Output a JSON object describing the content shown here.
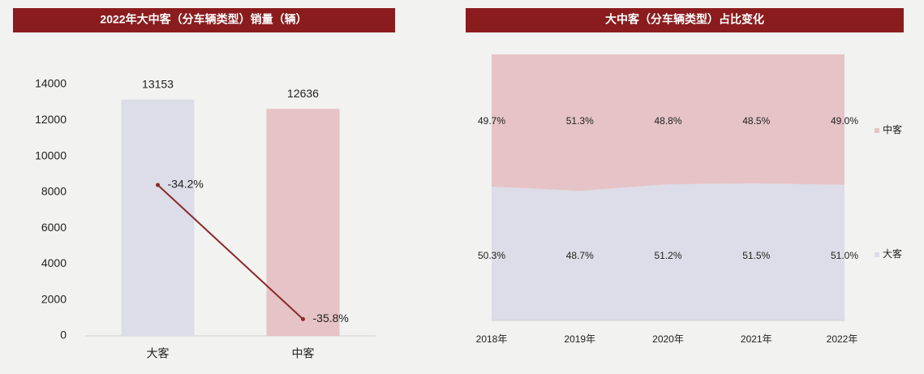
{
  "chart_data": [
    {
      "type": "bar",
      "title": "2022年大中客（分车辆类型）销量（辆）",
      "categories": [
        "大客",
        "中客"
      ],
      "values": [
        13153,
        12636
      ],
      "colors": [
        "#dcdde8",
        "#e6c3c6"
      ],
      "ylim": [
        0,
        14000
      ],
      "yticks": [
        0,
        2000,
        4000,
        6000,
        8000,
        10000,
        12000,
        14000
      ],
      "line": {
        "values": [
          -34.2,
          -35.8
        ],
        "value_labels": [
          "-34.2%",
          "-35.8%"
        ],
        "color": "#8b2a2a",
        "axis": "y2"
      },
      "y2lim": [
        -36,
        -33
      ]
    },
    {
      "type": "area",
      "title": "大中客（分车辆类型）占比变化",
      "stacked": true,
      "categories": [
        "2018年",
        "2019年",
        "2020年",
        "2021年",
        "2022年"
      ],
      "series": [
        {
          "name": "大客",
          "color": "#dcdde8",
          "values": [
            50.3,
            48.7,
            51.2,
            51.5,
            51.0
          ],
          "value_labels": [
            "50.3%",
            "48.7%",
            "51.2%",
            "51.5%",
            "51.0%"
          ]
        },
        {
          "name": "中客",
          "color": "#e6c3c6",
          "values": [
            49.7,
            51.3,
            48.8,
            48.5,
            49.0
          ],
          "value_labels": [
            "49.7%",
            "51.3%",
            "48.8%",
            "48.5%",
            "49.0%"
          ]
        }
      ],
      "ylim": [
        0,
        100
      ],
      "legend": "right"
    }
  ]
}
